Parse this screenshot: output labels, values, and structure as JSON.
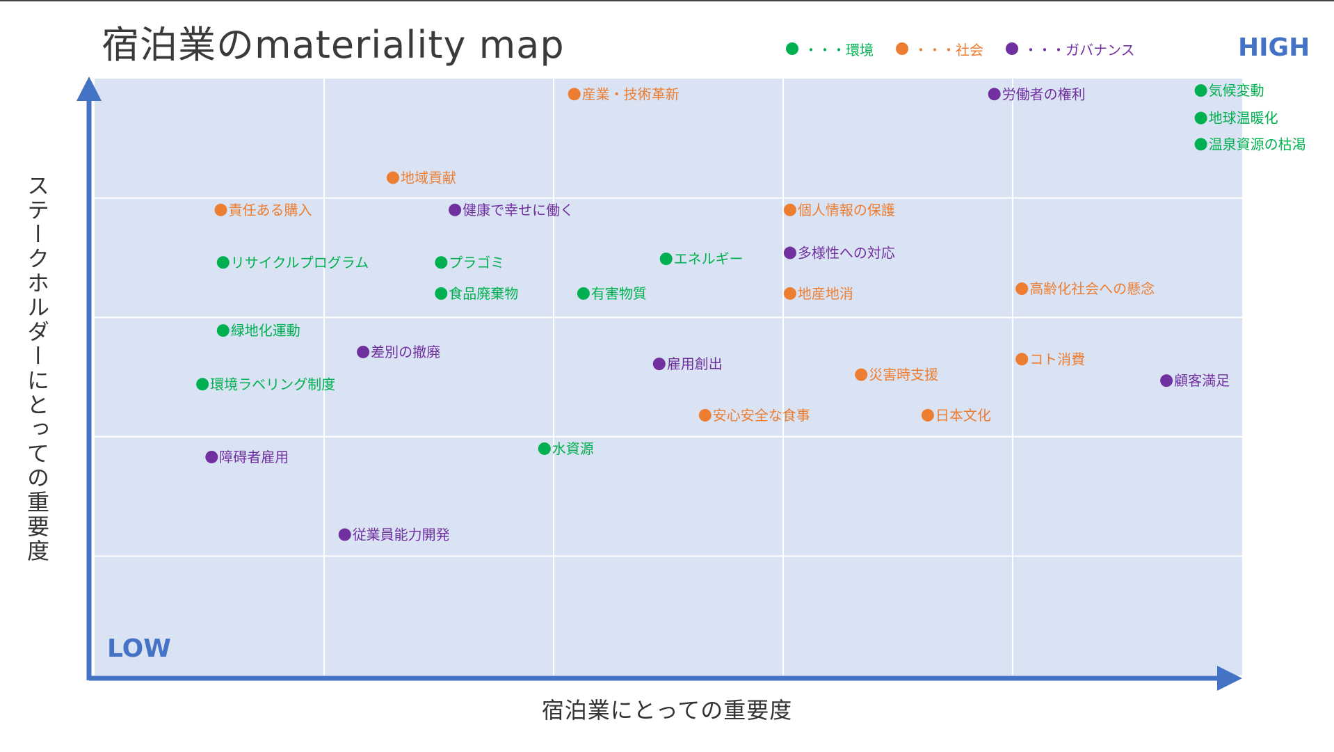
{
  "title": "宿泊業のmateriality map",
  "legend": [
    {
      "label": "・・・環境",
      "color": "#00b050"
    },
    {
      "label": "・・・社会",
      "color": "#ed7d31"
    },
    {
      "label": "・・・ガバナンス",
      "color": "#7030a0"
    }
  ],
  "corner_labels": {
    "high": "HIGH",
    "low": "LOW"
  },
  "chart_data": {
    "type": "scatter",
    "title": "宿泊業のmateriality map",
    "xlabel": "宿泊業にとっての重要度",
    "ylabel": "ステークホルダーにとっての重要度",
    "xlim": [
      0,
      5
    ],
    "ylim": [
      0,
      5
    ],
    "grid": true,
    "legend_position": "top-right",
    "categories": {
      "環境": "#00b050",
      "社会": "#ed7d31",
      "ガバナンス": "#7030a0"
    },
    "points": [
      {
        "label": "気候変動",
        "category": "環境",
        "x": 4.82,
        "y": 4.9
      },
      {
        "label": "地球温暖化",
        "category": "環境",
        "x": 4.82,
        "y": 4.67
      },
      {
        "label": "温泉資源の枯渇",
        "category": "環境",
        "x": 4.82,
        "y": 4.45
      },
      {
        "label": "産業・技術革新",
        "category": "社会",
        "x": 2.09,
        "y": 4.87
      },
      {
        "label": "労働者の権利",
        "category": "ガバナンス",
        "x": 3.92,
        "y": 4.87
      },
      {
        "label": "地域貢献",
        "category": "社会",
        "x": 1.3,
        "y": 4.17
      },
      {
        "label": "責任ある購入",
        "category": "社会",
        "x": 0.55,
        "y": 3.9
      },
      {
        "label": "健康で幸せに働く",
        "category": "ガバナンス",
        "x": 1.57,
        "y": 3.9
      },
      {
        "label": "個人情報の保護",
        "category": "社会",
        "x": 3.03,
        "y": 3.9
      },
      {
        "label": "リサイクルプログラム",
        "category": "環境",
        "x": 0.56,
        "y": 3.46
      },
      {
        "label": "プラゴミ",
        "category": "環境",
        "x": 1.51,
        "y": 3.46
      },
      {
        "label": "エネルギー",
        "category": "環境",
        "x": 2.49,
        "y": 3.49
      },
      {
        "label": "多様性への対応",
        "category": "ガバナンス",
        "x": 3.03,
        "y": 3.54
      },
      {
        "label": "食品廃棄物",
        "category": "環境",
        "x": 1.51,
        "y": 3.2
      },
      {
        "label": "有害物質",
        "category": "環境",
        "x": 2.13,
        "y": 3.2
      },
      {
        "label": "地産地消",
        "category": "社会",
        "x": 3.03,
        "y": 3.2
      },
      {
        "label": "高齢化社会への懸念",
        "category": "社会",
        "x": 4.04,
        "y": 3.24
      },
      {
        "label": "緑地化運動",
        "category": "環境",
        "x": 0.56,
        "y": 2.89
      },
      {
        "label": "差別の撤廃",
        "category": "ガバナンス",
        "x": 1.17,
        "y": 2.71
      },
      {
        "label": "雇用創出",
        "category": "ガバナンス",
        "x": 2.46,
        "y": 2.61
      },
      {
        "label": "環境ラベリング制度",
        "category": "環境",
        "x": 0.47,
        "y": 2.44
      },
      {
        "label": "災害時支援",
        "category": "社会",
        "x": 3.34,
        "y": 2.52
      },
      {
        "label": "コト消費",
        "category": "社会",
        "x": 4.04,
        "y": 2.65
      },
      {
        "label": "顧客満足",
        "category": "ガバナンス",
        "x": 4.67,
        "y": 2.47
      },
      {
        "label": "安心安全な食事",
        "category": "社会",
        "x": 2.66,
        "y": 2.18
      },
      {
        "label": "日本文化",
        "category": "社会",
        "x": 3.63,
        "y": 2.18
      },
      {
        "label": "障碍者雇用",
        "category": "ガバナンス",
        "x": 0.51,
        "y": 1.83
      },
      {
        "label": "水資源",
        "category": "環境",
        "x": 1.96,
        "y": 1.9
      },
      {
        "label": "従業員能力開発",
        "category": "ガバナンス",
        "x": 1.09,
        "y": 1.18
      }
    ]
  }
}
